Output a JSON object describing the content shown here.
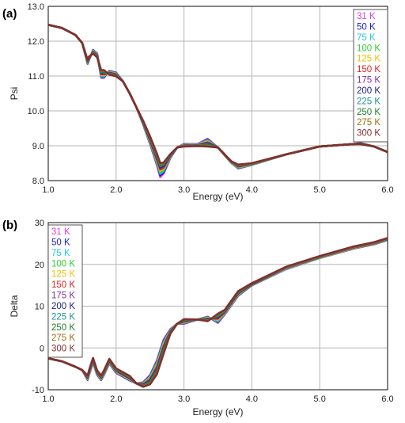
{
  "chart_data": [
    {
      "type": "line",
      "panel_label": "(a)",
      "xlabel": "Energy (eV)",
      "ylabel": "Psi",
      "xlim": [
        1.0,
        6.0
      ],
      "ylim": [
        8.0,
        13.0
      ],
      "x_ticks": [
        "1.0",
        "2.0",
        "3.0",
        "4.0",
        "5.0",
        "6.0"
      ],
      "y_ticks": [
        "8.0",
        "9.0",
        "10.0",
        "11.0",
        "12.0",
        "13.0"
      ],
      "grid": true,
      "legend_position": "top-right",
      "x": [
        1.0,
        1.2,
        1.4,
        1.5,
        1.58,
        1.6,
        1.66,
        1.72,
        1.78,
        1.82,
        1.9,
        2.0,
        2.1,
        2.2,
        2.3,
        2.4,
        2.5,
        2.6,
        2.65,
        2.7,
        2.8,
        2.9,
        3.0,
        3.2,
        3.35,
        3.5,
        3.7,
        3.8,
        4.0,
        4.5,
        5.0,
        5.5,
        5.6,
        5.8,
        6.0
      ],
      "series": [
        {
          "name": "31 K",
          "values": [
            12.47,
            12.38,
            12.18,
            11.95,
            11.35,
            11.45,
            11.75,
            11.65,
            10.95,
            10.95,
            11.15,
            11.1,
            10.85,
            10.5,
            10.1,
            9.6,
            9.05,
            8.45,
            8.1,
            8.2,
            8.65,
            8.95,
            9.05,
            9.05,
            9.2,
            8.95,
            8.5,
            8.35,
            8.45,
            8.75,
            8.98,
            9.05,
            9.08,
            8.98,
            8.82
          ]
        },
        {
          "name": "50 K",
          "values": [
            12.47,
            12.38,
            12.18,
            11.95,
            11.36,
            11.46,
            11.74,
            11.64,
            10.97,
            10.97,
            11.14,
            11.09,
            10.85,
            10.5,
            10.1,
            9.61,
            9.07,
            8.48,
            8.15,
            8.24,
            8.66,
            8.95,
            9.04,
            9.04,
            9.18,
            8.95,
            8.5,
            8.36,
            8.45,
            8.75,
            8.98,
            9.05,
            9.07,
            8.98,
            8.82
          ]
        },
        {
          "name": "75 K",
          "values": [
            12.47,
            12.38,
            12.18,
            11.95,
            11.37,
            11.47,
            11.73,
            11.63,
            10.99,
            10.99,
            11.13,
            11.08,
            10.85,
            10.5,
            10.1,
            9.62,
            9.09,
            8.51,
            8.2,
            8.28,
            8.67,
            8.95,
            9.03,
            9.04,
            9.16,
            8.95,
            8.5,
            8.37,
            8.45,
            8.75,
            8.98,
            9.05,
            9.07,
            8.98,
            8.82
          ]
        },
        {
          "name": "100 K",
          "values": [
            12.47,
            12.38,
            12.18,
            11.95,
            11.38,
            11.48,
            11.72,
            11.62,
            11.01,
            11.01,
            11.12,
            11.07,
            10.85,
            10.5,
            10.1,
            9.63,
            9.11,
            8.54,
            8.24,
            8.31,
            8.68,
            8.95,
            9.02,
            9.03,
            9.14,
            8.95,
            8.51,
            8.38,
            8.46,
            8.75,
            8.98,
            9.05,
            9.07,
            8.98,
            8.82
          ]
        },
        {
          "name": "125 K",
          "values": [
            12.47,
            12.38,
            12.18,
            11.95,
            11.39,
            11.49,
            11.71,
            11.61,
            11.03,
            11.03,
            11.11,
            11.06,
            10.85,
            10.5,
            10.1,
            9.64,
            9.13,
            8.57,
            8.28,
            8.34,
            8.69,
            8.95,
            9.02,
            9.03,
            9.12,
            8.95,
            8.51,
            8.39,
            8.46,
            8.75,
            8.98,
            9.05,
            9.06,
            8.98,
            8.82
          ]
        },
        {
          "name": "150 K",
          "values": [
            12.47,
            12.38,
            12.18,
            11.95,
            11.4,
            11.5,
            11.7,
            11.6,
            11.05,
            11.05,
            11.1,
            11.05,
            10.85,
            10.5,
            10.1,
            9.65,
            9.15,
            8.6,
            8.32,
            8.37,
            8.7,
            8.95,
            9.01,
            9.02,
            9.1,
            8.95,
            8.52,
            8.4,
            8.47,
            8.75,
            8.98,
            9.05,
            9.06,
            8.98,
            8.82
          ]
        },
        {
          "name": "175 K",
          "values": [
            12.47,
            12.38,
            12.18,
            11.95,
            11.41,
            11.51,
            11.69,
            11.59,
            11.07,
            11.07,
            11.09,
            11.04,
            10.85,
            10.5,
            10.1,
            9.66,
            9.17,
            8.63,
            8.35,
            8.4,
            8.71,
            8.95,
            9.01,
            9.02,
            9.08,
            8.95,
            8.52,
            8.41,
            8.47,
            8.75,
            8.98,
            9.05,
            9.06,
            8.98,
            8.82
          ]
        },
        {
          "name": "200 K",
          "values": [
            12.47,
            12.38,
            12.18,
            11.95,
            11.42,
            11.52,
            11.68,
            11.58,
            11.09,
            11.09,
            11.08,
            11.03,
            10.85,
            10.5,
            10.1,
            9.67,
            9.19,
            8.66,
            8.38,
            8.43,
            8.72,
            8.95,
            9.0,
            9.01,
            9.06,
            8.95,
            8.53,
            8.42,
            8.48,
            8.75,
            8.98,
            9.05,
            9.06,
            8.98,
            8.82
          ]
        },
        {
          "name": "225 K",
          "values": [
            12.47,
            12.38,
            12.18,
            11.95,
            11.43,
            11.53,
            11.67,
            11.57,
            11.11,
            11.11,
            11.07,
            11.02,
            10.85,
            10.5,
            10.1,
            9.68,
            9.21,
            8.69,
            8.41,
            8.46,
            8.73,
            8.95,
            9.0,
            9.01,
            9.04,
            8.95,
            8.53,
            8.43,
            8.48,
            8.75,
            8.98,
            9.05,
            9.05,
            8.98,
            8.82
          ]
        },
        {
          "name": "250 K",
          "values": [
            12.47,
            12.38,
            12.18,
            11.95,
            11.44,
            11.54,
            11.66,
            11.56,
            11.13,
            11.13,
            11.06,
            11.01,
            10.85,
            10.5,
            10.1,
            9.69,
            9.23,
            8.72,
            8.44,
            8.48,
            8.74,
            8.95,
            8.99,
            9.0,
            9.02,
            8.95,
            8.54,
            8.44,
            8.49,
            8.75,
            8.98,
            9.05,
            9.05,
            8.98,
            8.82
          ]
        },
        {
          "name": "275 K",
          "values": [
            12.47,
            12.38,
            12.18,
            11.95,
            11.45,
            11.55,
            11.65,
            11.55,
            11.15,
            11.15,
            11.05,
            11.0,
            10.85,
            10.5,
            10.1,
            9.7,
            9.25,
            8.75,
            8.47,
            8.5,
            8.75,
            8.95,
            8.99,
            9.0,
            9.0,
            8.95,
            8.54,
            8.45,
            8.49,
            8.75,
            8.98,
            9.05,
            9.05,
            8.98,
            8.82
          ]
        },
        {
          "name": "300 K",
          "values": [
            12.47,
            12.38,
            12.18,
            11.95,
            11.46,
            11.56,
            11.64,
            11.54,
            11.17,
            11.17,
            11.04,
            10.99,
            10.85,
            10.5,
            10.1,
            9.71,
            9.27,
            8.78,
            8.5,
            8.52,
            8.76,
            8.95,
            8.98,
            8.99,
            8.98,
            8.95,
            8.55,
            8.46,
            8.5,
            8.75,
            8.98,
            9.05,
            9.05,
            8.98,
            8.82
          ]
        }
      ]
    },
    {
      "type": "line",
      "panel_label": "(b)",
      "xlabel": "Energy (eV)",
      "ylabel": "Delta",
      "xlim": [
        1.0,
        6.0
      ],
      "ylim": [
        -10,
        30
      ],
      "x_ticks": [
        "1.0",
        "2.0",
        "3.0",
        "4.0",
        "5.0",
        "6.0"
      ],
      "y_ticks": [
        "-10",
        "0",
        "10",
        "20",
        "30"
      ],
      "grid": true,
      "legend_position": "top-left",
      "x": [
        1.0,
        1.2,
        1.4,
        1.5,
        1.58,
        1.6,
        1.66,
        1.72,
        1.78,
        1.82,
        1.9,
        2.0,
        2.2,
        2.3,
        2.4,
        2.5,
        2.6,
        2.7,
        2.8,
        2.9,
        3.0,
        3.2,
        3.35,
        3.5,
        3.6,
        3.8,
        4.0,
        4.5,
        5.0,
        5.5,
        5.8,
        6.0
      ],
      "series": [
        {
          "name": "31 K",
          "values": [
            -2.5,
            -3.2,
            -4.5,
            -5.3,
            -7.7,
            -6.5,
            -3.5,
            -6.5,
            -7.7,
            -6.5,
            -3.7,
            -6.0,
            -7.8,
            -8.5,
            -8.2,
            -6.5,
            -3.0,
            2.0,
            4.5,
            5.8,
            5.8,
            6.8,
            7.5,
            6.0,
            8.0,
            12.5,
            15.0,
            18.8,
            21.5,
            23.8,
            24.8,
            25.8
          ]
        },
        {
          "name": "50 K",
          "values": [
            -2.5,
            -3.2,
            -4.5,
            -5.3,
            -7.6,
            -6.4,
            -3.4,
            -6.4,
            -7.6,
            -6.4,
            -3.6,
            -5.9,
            -7.7,
            -8.5,
            -8.3,
            -6.7,
            -3.3,
            1.7,
            4.4,
            5.8,
            5.9,
            6.8,
            7.4,
            6.2,
            8.1,
            12.6,
            15.0,
            18.9,
            21.5,
            23.8,
            24.8,
            25.8
          ]
        },
        {
          "name": "75 K",
          "values": [
            -2.5,
            -3.2,
            -4.5,
            -5.3,
            -7.5,
            -6.3,
            -3.3,
            -6.3,
            -7.5,
            -6.3,
            -3.5,
            -5.8,
            -7.6,
            -8.5,
            -8.4,
            -6.9,
            -3.6,
            1.4,
            4.3,
            5.8,
            6.0,
            6.8,
            7.3,
            6.4,
            8.2,
            12.7,
            15.1,
            18.9,
            21.5,
            23.9,
            24.9,
            25.8
          ]
        },
        {
          "name": "100 K",
          "values": [
            -2.5,
            -3.2,
            -4.5,
            -5.3,
            -7.4,
            -6.2,
            -3.2,
            -6.2,
            -7.4,
            -6.2,
            -3.4,
            -5.7,
            -7.5,
            -8.5,
            -8.5,
            -7.1,
            -3.9,
            1.1,
            4.2,
            5.8,
            6.1,
            6.8,
            7.2,
            6.6,
            8.3,
            12.8,
            15.1,
            19.0,
            21.6,
            23.9,
            24.9,
            25.9
          ]
        },
        {
          "name": "125 K",
          "values": [
            -2.5,
            -3.2,
            -4.5,
            -5.3,
            -7.3,
            -6.1,
            -3.1,
            -6.1,
            -7.3,
            -6.1,
            -3.3,
            -5.6,
            -7.4,
            -8.5,
            -8.6,
            -7.3,
            -4.2,
            0.8,
            4.1,
            5.8,
            6.2,
            6.8,
            7.1,
            6.8,
            8.4,
            12.9,
            15.2,
            19.0,
            21.6,
            23.9,
            24.9,
            25.9
          ]
        },
        {
          "name": "150 K",
          "values": [
            -2.5,
            -3.2,
            -4.5,
            -5.3,
            -7.2,
            -6.0,
            -3.0,
            -6.0,
            -7.2,
            -6.0,
            -3.2,
            -5.5,
            -7.3,
            -8.5,
            -8.7,
            -7.5,
            -4.5,
            0.5,
            4.0,
            5.8,
            6.3,
            6.8,
            7.0,
            7.0,
            8.5,
            13.0,
            15.2,
            19.1,
            21.7,
            24.0,
            25.0,
            26.0
          ]
        },
        {
          "name": "175 K",
          "values": [
            -2.5,
            -3.2,
            -4.5,
            -5.3,
            -7.1,
            -5.9,
            -2.9,
            -5.9,
            -7.1,
            -5.9,
            -3.1,
            -5.4,
            -7.2,
            -8.5,
            -8.8,
            -7.7,
            -4.8,
            0.2,
            3.9,
            5.8,
            6.4,
            6.8,
            6.9,
            7.2,
            8.6,
            13.1,
            15.3,
            19.1,
            21.7,
            24.0,
            25.0,
            26.0
          ]
        },
        {
          "name": "200 K",
          "values": [
            -2.5,
            -3.2,
            -4.5,
            -5.3,
            -7.0,
            -5.8,
            -2.8,
            -5.8,
            -7.0,
            -5.8,
            -3.0,
            -5.3,
            -7.1,
            -8.5,
            -8.9,
            -7.9,
            -5.1,
            -0.1,
            3.8,
            5.8,
            6.5,
            6.8,
            6.8,
            7.4,
            8.7,
            13.2,
            15.3,
            19.2,
            21.8,
            24.1,
            25.1,
            26.1
          ]
        },
        {
          "name": "225 K",
          "values": [
            -2.5,
            -3.2,
            -4.5,
            -5.3,
            -6.9,
            -5.7,
            -2.7,
            -5.7,
            -6.9,
            -5.7,
            -2.9,
            -5.2,
            -7.0,
            -8.5,
            -9.0,
            -8.1,
            -5.4,
            -0.4,
            3.7,
            5.8,
            6.6,
            6.8,
            6.7,
            7.6,
            8.8,
            13.3,
            15.4,
            19.2,
            21.8,
            24.1,
            25.1,
            26.1
          ]
        },
        {
          "name": "250 K",
          "values": [
            -2.5,
            -3.2,
            -4.5,
            -5.3,
            -6.8,
            -5.6,
            -2.6,
            -5.6,
            -6.8,
            -5.6,
            -2.8,
            -5.1,
            -6.9,
            -8.5,
            -9.1,
            -8.3,
            -5.7,
            -0.7,
            3.6,
            5.8,
            6.7,
            6.8,
            6.6,
            7.8,
            8.9,
            13.4,
            15.4,
            19.3,
            21.9,
            24.2,
            25.2,
            26.2
          ]
        },
        {
          "name": "275 K",
          "values": [
            -2.5,
            -3.2,
            -4.5,
            -5.3,
            -6.7,
            -5.5,
            -2.5,
            -5.5,
            -6.7,
            -5.5,
            -2.7,
            -5.0,
            -6.8,
            -8.5,
            -9.2,
            -8.5,
            -6.0,
            -1.0,
            3.5,
            5.8,
            6.8,
            6.8,
            6.5,
            8.0,
            9.0,
            13.5,
            15.5,
            19.3,
            21.9,
            24.2,
            25.2,
            26.2
          ]
        },
        {
          "name": "300 K",
          "values": [
            -2.5,
            -3.2,
            -4.5,
            -5.3,
            -6.6,
            -5.4,
            -2.4,
            -5.4,
            -6.6,
            -5.4,
            -2.6,
            -4.9,
            -6.7,
            -8.5,
            -9.3,
            -8.7,
            -6.3,
            -1.3,
            3.4,
            5.8,
            6.9,
            6.8,
            6.4,
            8.2,
            9.1,
            13.6,
            15.5,
            19.4,
            22.0,
            24.3,
            25.3,
            26.3
          ]
        }
      ]
    }
  ],
  "series_colors": [
    "#e040e0",
    "#2020c8",
    "#20c8e0",
    "#30d030",
    "#f0c000",
    "#e02020",
    "#8030a0",
    "#202080",
    "#209090",
    "#208030",
    "#a07010",
    "#803030"
  ]
}
